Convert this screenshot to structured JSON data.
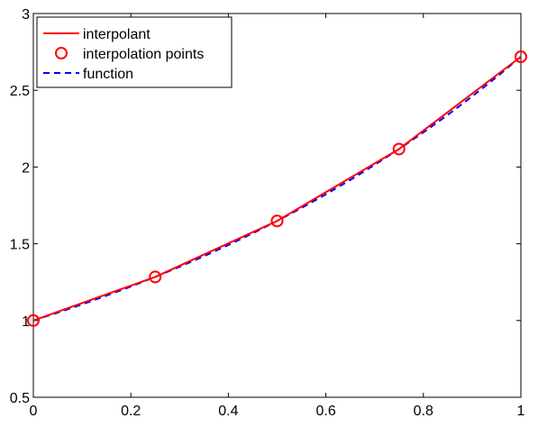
{
  "chart_data": {
    "type": "line",
    "title": "",
    "xlabel": "",
    "ylabel": "",
    "xlim": [
      0,
      1
    ],
    "ylim": [
      0.5,
      3
    ],
    "xticks": [
      0,
      0.2,
      0.4,
      0.6,
      0.8,
      1
    ],
    "xtick_labels": [
      "0",
      "0.2",
      "0.4",
      "0.6",
      "0.8",
      "1"
    ],
    "yticks": [
      0.5,
      1,
      1.5,
      2,
      2.5,
      3
    ],
    "ytick_labels": [
      "0.5",
      "1",
      "1.5",
      "2",
      "2.5",
      "3"
    ],
    "grid": false,
    "legend_position": "top-left",
    "series": [
      {
        "name": "interpolant",
        "style": "solid-line",
        "color": "#ff0000",
        "x": [
          0,
          0.25,
          0.5,
          0.75,
          1
        ],
        "y": [
          1.0,
          1.284,
          1.6487,
          2.117,
          2.7183
        ]
      },
      {
        "name": "interpolation points",
        "style": "circle-markers",
        "color": "#ff0000",
        "x": [
          0,
          0.25,
          0.5,
          0.75,
          1
        ],
        "y": [
          1.0,
          1.284,
          1.6487,
          2.117,
          2.7183
        ]
      },
      {
        "name": "function",
        "style": "dashed-line",
        "color": "#0000ff",
        "x": [
          0,
          0.05,
          0.1,
          0.15,
          0.2,
          0.25,
          0.3,
          0.35,
          0.4,
          0.45,
          0.5,
          0.55,
          0.6,
          0.65,
          0.7,
          0.75,
          0.8,
          0.85,
          0.9,
          0.95,
          1
        ],
        "y": [
          1.0,
          1.0513,
          1.1052,
          1.1618,
          1.2214,
          1.284,
          1.3499,
          1.4191,
          1.4918,
          1.5683,
          1.6487,
          1.7333,
          1.8221,
          1.9155,
          2.0138,
          2.117,
          2.2255,
          2.3396,
          2.4596,
          2.5857,
          2.7183
        ]
      }
    ]
  }
}
